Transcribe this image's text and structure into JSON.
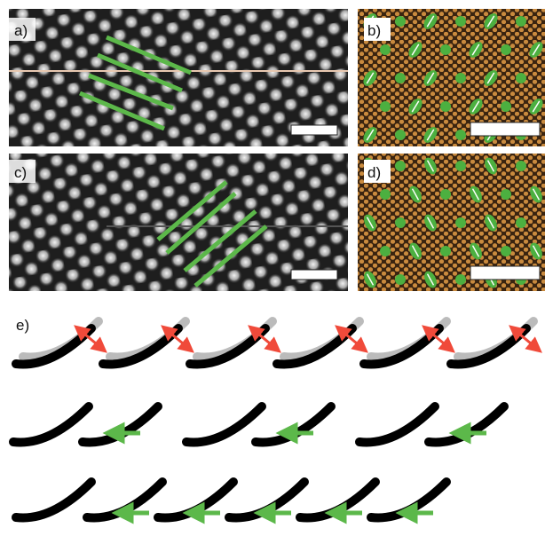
{
  "labels": [
    "a)",
    "b)",
    "c)",
    "d)",
    "e)"
  ]
}
